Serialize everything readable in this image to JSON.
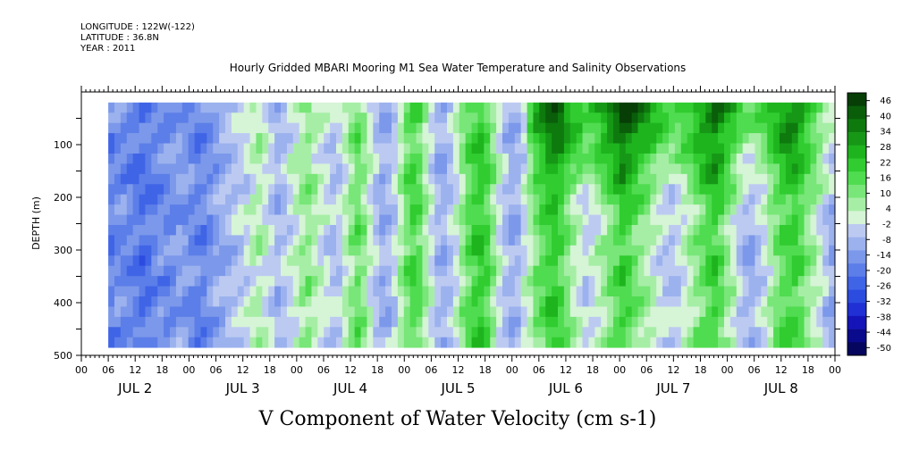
{
  "header": {
    "longitude": "LONGITUDE : 122W(-122)",
    "latitude": "LATITUDE : 36.8N",
    "year": "YEAR : 2011"
  },
  "chart_data": {
    "type": "heatmap",
    "title": "Hourly Gridded MBARI Mooring M1 Sea Water Temperature and Salinity Observations",
    "xlabel": "V Component of Water Velocity (cm s-1)",
    "ylabel": "DEPTH (m)",
    "y_reversed": true,
    "ylim": [
      500,
      0
    ],
    "yticks": [
      100,
      200,
      300,
      400,
      500
    ],
    "x_hour_ticks": [
      "00",
      "06",
      "12",
      "18",
      "00",
      "06",
      "12",
      "18",
      "00",
      "06",
      "12",
      "18",
      "00",
      "06",
      "12",
      "18",
      "00",
      "06",
      "12",
      "18",
      "00",
      "06",
      "12",
      "18",
      "00",
      "06",
      "12",
      "18",
      "00"
    ],
    "x_day_labels": [
      "JUL 2",
      "JUL 3",
      "JUL 4",
      "JUL 5",
      "JUL 6",
      "JUL 7",
      "JUL 8"
    ],
    "x_hours_range": [
      0,
      168
    ],
    "data_hours_start": 6,
    "depth_range": [
      20,
      485
    ],
    "colorbar": {
      "labels": [
        "46",
        "40",
        "34",
        "28",
        "22",
        "16",
        "10",
        "4",
        "-2",
        "-8",
        "-14",
        "-20",
        "-26",
        "-32",
        "-38",
        "-44",
        "-50"
      ],
      "range": [
        -50,
        50
      ]
    },
    "column_means": [
      -16,
      -14,
      -15,
      -16,
      -18,
      -20,
      -18,
      -16,
      -14,
      -15,
      -13,
      -10,
      -12,
      -14,
      -16,
      -15,
      -13,
      -10,
      -8,
      -6,
      -4,
      -2,
      0,
      4,
      6,
      2,
      -2,
      -6,
      -4,
      0,
      4,
      8,
      10,
      6,
      2,
      0,
      -4,
      -2,
      4,
      10,
      14,
      10,
      2,
      -4,
      -8,
      -6,
      -2,
      6,
      14,
      18,
      16,
      8,
      0,
      -6,
      -8,
      -4,
      2,
      10,
      16,
      20,
      22,
      18,
      10,
      2,
      -4,
      -8,
      -6,
      0,
      6,
      12,
      16,
      20,
      22,
      18,
      12,
      6,
      2,
      -2,
      0,
      4,
      8,
      12,
      16,
      20,
      18,
      14,
      10,
      8,
      4,
      0,
      -2,
      -4,
      -2,
      2,
      6,
      10,
      14,
      18,
      20,
      16,
      10,
      4,
      -2,
      -6,
      -8,
      -4,
      0,
      6,
      12,
      16,
      18,
      20,
      16,
      10,
      6,
      2,
      -4,
      -8
    ],
    "surface_boost": [
      0,
      0,
      0,
      0,
      0,
      0,
      0,
      0,
      0,
      0,
      0,
      0,
      0,
      0,
      0,
      0,
      0,
      0,
      0,
      0,
      0,
      0,
      0,
      0,
      0,
      0,
      0,
      0,
      0,
      0,
      0,
      0,
      0,
      0,
      0,
      0,
      0,
      0,
      0,
      0,
      0,
      0,
      0,
      0,
      0,
      0,
      0,
      0,
      0,
      0,
      0,
      0,
      0,
      0,
      0,
      0,
      0,
      0,
      0,
      0,
      0,
      0,
      0,
      0,
      0,
      0,
      0,
      0,
      14,
      16,
      18,
      20,
      20,
      22,
      22,
      22,
      24,
      24,
      24,
      26,
      26,
      26,
      28,
      28,
      28,
      28,
      26,
      26,
      24,
      24,
      24,
      22,
      22,
      22,
      20,
      20,
      20,
      20,
      22,
      22,
      22,
      24,
      24,
      22,
      22,
      20,
      20,
      20,
      18,
      18,
      18,
      16,
      16,
      16,
      16,
      14,
      14,
      14,
      12,
      12,
      12,
      12,
      10
    ]
  }
}
